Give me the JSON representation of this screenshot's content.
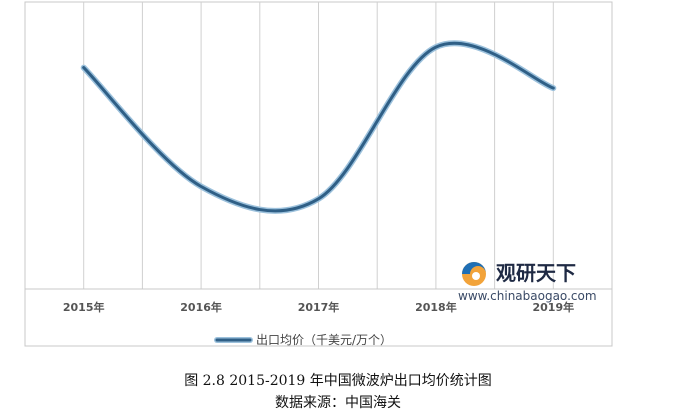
{
  "chart_data": {
    "type": "line",
    "categories": [
      "2015年",
      "2016年",
      "2017年",
      "2018年",
      "2019年"
    ],
    "series": [
      {
        "name": "出口均价（千美元/万个）",
        "values": [
          5.4,
          2.5,
          2.2,
          5.9,
          4.9
        ]
      }
    ],
    "title": "",
    "xlabel": "",
    "ylabel": "",
    "ylim": [
      0,
      7
    ],
    "grid": "vertical",
    "legend_position": "bottom-left",
    "line_color": "#2f5f86",
    "line_halo_color": "#9cc1dc"
  },
  "watermark": {
    "brand": "观研天下",
    "url": "www.chinabaogao.com"
  },
  "caption": {
    "figure": "图 2.8 2015-2019 年中国微波炉出口均价统计图",
    "source": "数据来源：中国海关"
  }
}
